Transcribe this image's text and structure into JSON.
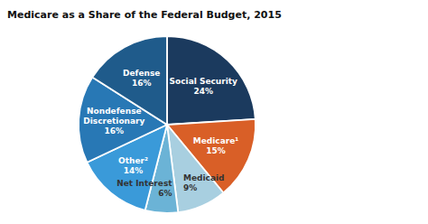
{
  "chart_data": {
    "type": "pie",
    "title": "Medicare as a Share of the Federal Budget, 2015",
    "categories": [
      "Social Security",
      "Medicare¹",
      "Medicaid",
      "Net Interest",
      "Other²",
      "Nondefense\nDiscretionary",
      "Defense"
    ],
    "values": [
      24,
      15,
      9,
      6,
      14,
      16,
      16
    ],
    "value_labels": [
      "24%",
      "15%",
      "9%",
      "6%",
      "14%",
      "16%",
      "16%"
    ],
    "colors": [
      "#1b3a5e",
      "#d95f27",
      "#a8cfe0",
      "#6bb3d6",
      "#3a9ad9",
      "#2878b5",
      "#1f5b8b"
    ],
    "data_labels": true
  }
}
